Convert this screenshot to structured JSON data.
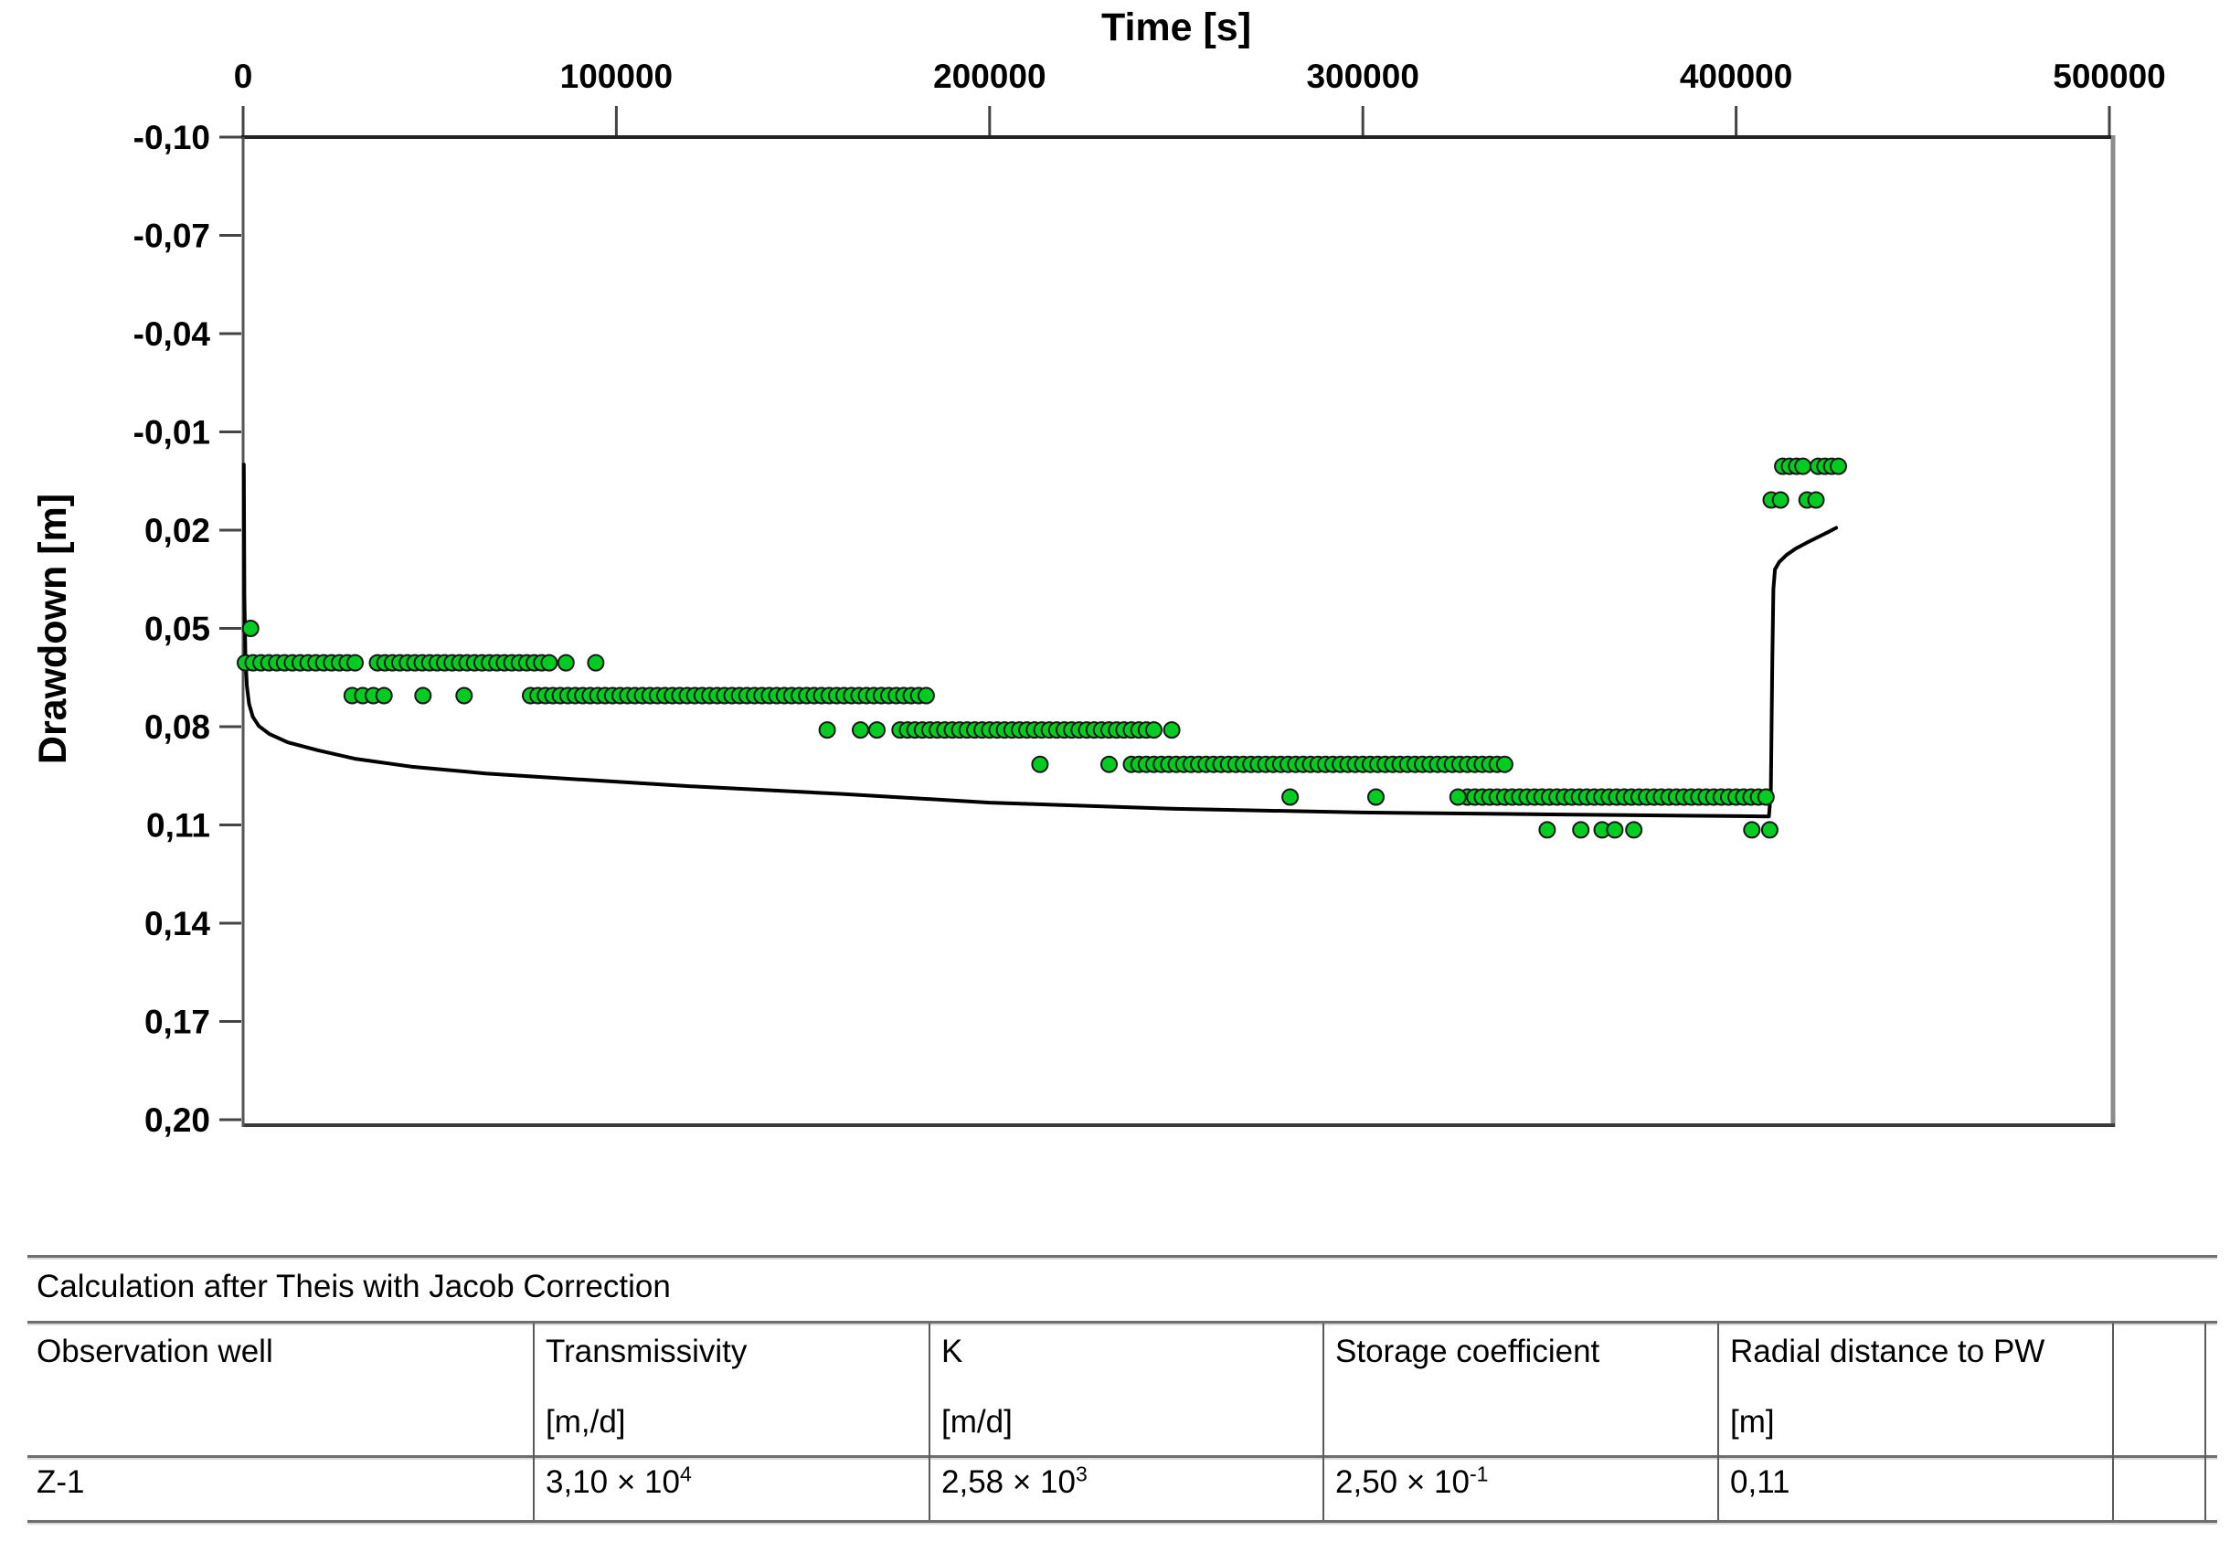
{
  "chart_data": {
    "type": "scatter",
    "title": "",
    "xlabel": "Time [s]",
    "ylabel": "Drawdown [m]",
    "xlim": [
      0,
      500000
    ],
    "ylim": [
      -0.1,
      0.2
    ],
    "y_inverted": true,
    "grid": false,
    "legend": "none",
    "x_ticks": [
      0,
      100000,
      200000,
      300000,
      400000,
      500000
    ],
    "x_tick_labels": [
      "0",
      "100000",
      "200000",
      "300000",
      "400000",
      "500000"
    ],
    "y_ticks": [
      -0.1,
      -0.07,
      -0.04,
      -0.01,
      0.02,
      0.05,
      0.08,
      0.11,
      0.14,
      0.17,
      0.2
    ],
    "y_tick_labels": [
      "-0,10",
      "-0,07",
      "-0,04",
      "-0,01",
      "0,02",
      "0,05",
      "0,08",
      "0,11",
      "0,14",
      "0,17",
      "0,20"
    ],
    "point_color": "#00CC22",
    "point_outline": "#161616",
    "line_color": "#000000",
    "series_names": [
      "observed-drawdown-points",
      "theis-fitted-curve"
    ],
    "scatter_runs": [
      {
        "t0": 600,
        "t1": 30200,
        "dt": 2100,
        "s": 0.0605
      },
      {
        "t0": 36000,
        "t1": 83200,
        "dt": 2000,
        "s": 0.0605
      },
      {
        "t0": 29200,
        "t1": 37800,
        "dt": 2850,
        "s": 0.0705
      },
      {
        "t0": 77000,
        "t1": 183000,
        "dt": 2000,
        "s": 0.0705
      },
      {
        "t0": 176000,
        "t1": 244200,
        "dt": 2000,
        "s": 0.081
      },
      {
        "t0": 238000,
        "t1": 339600,
        "dt": 2000,
        "s": 0.0915
      },
      {
        "t0": 328000,
        "t1": 408600,
        "dt": 2000,
        "s": 0.1015
      }
    ],
    "scatter_singles": [
      [
        2000,
        0.05
      ],
      [
        86500,
        0.0605
      ],
      [
        94500,
        0.0605
      ],
      [
        48200,
        0.0705
      ],
      [
        59200,
        0.0705
      ],
      [
        156500,
        0.081
      ],
      [
        165400,
        0.081
      ],
      [
        169800,
        0.081
      ],
      [
        248800,
        0.081
      ],
      [
        213500,
        0.0915
      ],
      [
        232000,
        0.0915
      ],
      [
        280500,
        0.1015
      ],
      [
        303500,
        0.1015
      ],
      [
        325500,
        0.1015
      ],
      [
        349400,
        0.1115
      ],
      [
        358400,
        0.1115
      ],
      [
        364100,
        0.1115
      ],
      [
        367500,
        0.1115
      ],
      [
        372600,
        0.1115
      ],
      [
        404200,
        0.1115
      ],
      [
        409000,
        0.1115
      ],
      [
        409400,
        0.0108
      ],
      [
        411900,
        0.0108
      ],
      [
        419000,
        0.0108
      ],
      [
        421400,
        0.0108
      ],
      [
        412500,
        0.0005
      ],
      [
        414300,
        0.0005
      ],
      [
        416200,
        0.0005
      ],
      [
        417900,
        0.0005
      ],
      [
        422000,
        0.0005
      ],
      [
        423800,
        0.0005
      ],
      [
        425600,
        0.0005
      ],
      [
        427400,
        0.0005
      ]
    ],
    "line_points": [
      [
        200,
        0.0
      ],
      [
        350,
        0.04
      ],
      [
        600,
        0.058
      ],
      [
        1000,
        0.0675
      ],
      [
        1600,
        0.073
      ],
      [
        2600,
        0.077
      ],
      [
        4200,
        0.0798
      ],
      [
        7000,
        0.0822
      ],
      [
        12000,
        0.0848
      ],
      [
        20000,
        0.0872
      ],
      [
        30000,
        0.0898
      ],
      [
        45000,
        0.0922
      ],
      [
        65000,
        0.0943
      ],
      [
        90000,
        0.0961
      ],
      [
        120000,
        0.0982
      ],
      [
        160000,
        0.1005
      ],
      [
        200000,
        0.1032
      ],
      [
        250000,
        0.1051
      ],
      [
        300000,
        0.1062
      ],
      [
        350000,
        0.1068
      ],
      [
        390000,
        0.1072
      ],
      [
        408800,
        0.1074
      ],
      [
        409300,
        0.1
      ],
      [
        409700,
        0.06
      ],
      [
        410000,
        0.038
      ],
      [
        410400,
        0.032
      ],
      [
        411500,
        0.0298
      ],
      [
        413500,
        0.0276
      ],
      [
        416000,
        0.0256
      ],
      [
        419000,
        0.0238
      ],
      [
        422000,
        0.0221
      ],
      [
        425000,
        0.0204
      ],
      [
        426800,
        0.0193
      ]
    ]
  },
  "table": {
    "title": "Calculation after Theis with Jacob Correction",
    "columns": [
      {
        "label": "Observation well",
        "unit": ""
      },
      {
        "label": "Transmissivity",
        "unit": "[m,/d]"
      },
      {
        "label": "K",
        "unit": "[m/d]"
      },
      {
        "label": "Storage coefficient",
        "unit": ""
      },
      {
        "label": "Radial distance to PW",
        "unit": "[m]"
      },
      {
        "label": "",
        "unit": ""
      }
    ],
    "row": {
      "cells": [
        {
          "text": "Z-1",
          "sup": ""
        },
        {
          "text": "3,10 × 10",
          "sup": "4"
        },
        {
          "text": "2,58 × 10",
          "sup": "3"
        },
        {
          "text": "2,50 × 10",
          "sup": "-1"
        },
        {
          "text": "0,11",
          "sup": ""
        },
        {
          "text": "",
          "sup": ""
        }
      ]
    }
  }
}
